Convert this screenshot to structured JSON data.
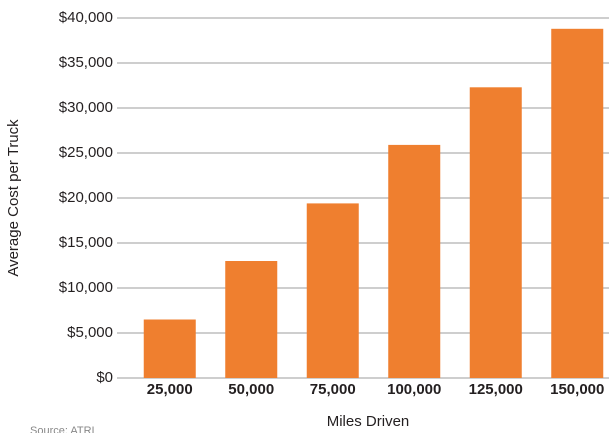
{
  "chart_data": {
    "type": "bar",
    "x_label": "Miles Driven",
    "y_label": "Average Cost per Truck",
    "source": "Source: ATRI",
    "categories": [
      "25,000",
      "50,000",
      "75,000",
      "100,000",
      "125,000",
      "150,000"
    ],
    "values": [
      6500,
      13000,
      19400,
      25900,
      32300,
      38800
    ],
    "color": "#ef7f2f",
    "ylim": [
      0,
      40000
    ],
    "yticks": [
      {
        "value": 0,
        "label": "$0"
      },
      {
        "value": 5000,
        "label": "$5,000"
      },
      {
        "value": 10000,
        "label": "$10,000"
      },
      {
        "value": 15000,
        "label": "$15,000"
      },
      {
        "value": 20000,
        "label": "$20,000"
      },
      {
        "value": 25000,
        "label": "$25,000"
      },
      {
        "value": 30000,
        "label": "$30,000"
      },
      {
        "value": 35000,
        "label": "$35,000"
      },
      {
        "value": 40000,
        "label": "$40,000"
      }
    ],
    "grid": true
  }
}
